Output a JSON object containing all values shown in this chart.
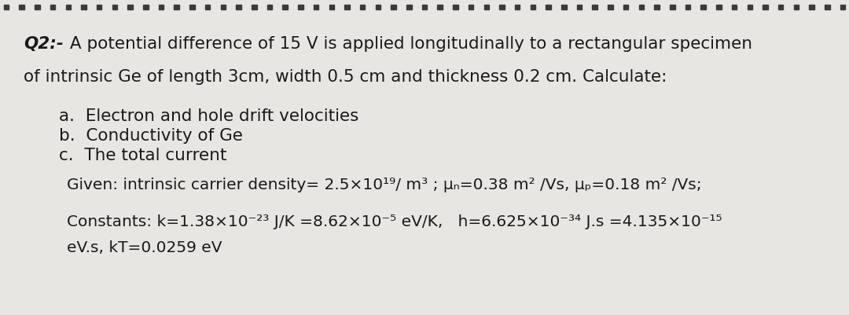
{
  "bg_color": "#e8e6e3",
  "text_color": "#1a1a1a",
  "dot_color": "#3a3a3a",
  "q2_bold": "Q2:-",
  "line1_rest": " A potential difference of 15 V is applied longitudinally to a rectangular specimen",
  "line2": "of intrinsic Ge of length 3cm, width 0.5 cm and thickness 0.2 cm. Calculate:",
  "item_a": "a.  Electron and hole drift velocities",
  "item_b": "b.  Conductivity of Ge",
  "item_c": "c.  The total current",
  "given_line": "Given: intrinsic carrier density= 2.5×10¹⁹/ m³ ; μₙ=0.38 m² /Vs, μₚ=0.18 m² /Vs;",
  "const_line1": "Constants: k=1.38×10⁻²³ J/K =8.62×10⁻⁵ eV/K,   h=6.625×10⁻³⁴ J.s =4.135×10⁻¹⁵",
  "const_line2": "eV.s, kT=0.0259 eV",
  "font_size_main": 15.5,
  "font_size_given": 14.5,
  "num_dots": 55,
  "dot_size": 6.5
}
